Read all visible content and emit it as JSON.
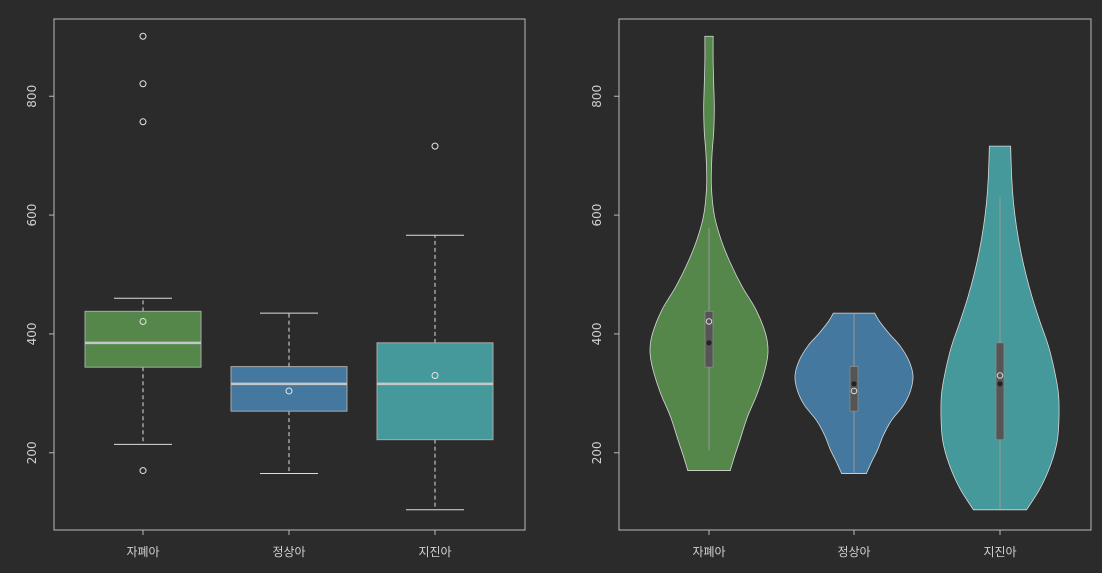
{
  "figure": {
    "background": "#2b2b2b",
    "axis_color": "#b8b8b8",
    "text_color": "#d0d0d0"
  },
  "chart_data": [
    {
      "type": "box",
      "title": "",
      "xlabel": "",
      "ylabel": "",
      "categories": [
        "자폐아",
        "정상아",
        "지진아"
      ],
      "colors": [
        "#55874a",
        "#44789f",
        "#46999b"
      ],
      "yticks": [
        200,
        400,
        600,
        800
      ],
      "ylim": [
        70,
        930
      ],
      "grid": false,
      "series": [
        {
          "name": "자폐아",
          "whisker_low": 214,
          "q1": 344,
          "median": 385,
          "q3": 438,
          "whisker_high": 460,
          "mean": 421,
          "outliers": [
            170,
            757,
            821,
            901
          ]
        },
        {
          "name": "정상아",
          "whisker_low": 165,
          "q1": 270,
          "median": 316,
          "q3": 345,
          "whisker_high": 435,
          "mean": 304,
          "outliers": []
        },
        {
          "name": "지진아",
          "whisker_low": 104,
          "q1": 222,
          "median": 316,
          "q3": 385,
          "whisker_high": 566,
          "mean": 330,
          "outliers": [
            716
          ]
        }
      ]
    },
    {
      "type": "violin",
      "title": "",
      "xlabel": "",
      "ylabel": "",
      "categories": [
        "자폐아",
        "정상아",
        "지진아"
      ],
      "colors": [
        "#55874a",
        "#44789f",
        "#46999b"
      ],
      "yticks": [
        200,
        400,
        600,
        800
      ],
      "ylim": [
        70,
        930
      ],
      "grid": false,
      "series": [
        {
          "name": "자폐아",
          "min": 170,
          "max": 901,
          "q1": 344,
          "median": 385,
          "q3": 438,
          "mean": 421,
          "whisker_low": 204,
          "whisker_high": 578,
          "density": [
            [
              170,
              0.36
            ],
            [
              190,
              0.42
            ],
            [
              220,
              0.52
            ],
            [
              260,
              0.65
            ],
            [
              300,
              0.82
            ],
            [
              340,
              0.95
            ],
            [
              370,
              1.0
            ],
            [
              400,
              0.96
            ],
            [
              440,
              0.8
            ],
            [
              480,
              0.56
            ],
            [
              520,
              0.36
            ],
            [
              560,
              0.2
            ],
            [
              600,
              0.09
            ],
            [
              650,
              0.04
            ],
            [
              700,
              0.05
            ],
            [
              740,
              0.08
            ],
            [
              780,
              0.09
            ],
            [
              820,
              0.08
            ],
            [
              860,
              0.07
            ],
            [
              901,
              0.07
            ]
          ]
        },
        {
          "name": "정상아",
          "min": 165,
          "max": 435,
          "q1": 270,
          "median": 316,
          "q3": 345,
          "mean": 304,
          "whisker_low": 165,
          "whisker_high": 435,
          "density": [
            [
              165,
              0.21
            ],
            [
              185,
              0.3
            ],
            [
              205,
              0.4
            ],
            [
              230,
              0.5
            ],
            [
              255,
              0.64
            ],
            [
              280,
              0.84
            ],
            [
              305,
              0.96
            ],
            [
              330,
              1.0
            ],
            [
              355,
              0.93
            ],
            [
              380,
              0.78
            ],
            [
              400,
              0.6
            ],
            [
              420,
              0.44
            ],
            [
              435,
              0.35
            ]
          ]
        },
        {
          "name": "지진아",
          "min": 104,
          "max": 716,
          "q1": 222,
          "median": 316,
          "q3": 385,
          "mean": 330,
          "whisker_low": 104,
          "whisker_high": 630,
          "density": [
            [
              104,
              0.45
            ],
            [
              140,
              0.68
            ],
            [
              180,
              0.86
            ],
            [
              220,
              0.97
            ],
            [
              260,
              1.0
            ],
            [
              300,
              0.99
            ],
            [
              340,
              0.92
            ],
            [
              380,
              0.82
            ],
            [
              420,
              0.68
            ],
            [
              460,
              0.55
            ],
            [
              500,
              0.44
            ],
            [
              540,
              0.35
            ],
            [
              580,
              0.28
            ],
            [
              620,
              0.23
            ],
            [
              660,
              0.2
            ],
            [
              716,
              0.18
            ]
          ]
        }
      ]
    }
  ]
}
